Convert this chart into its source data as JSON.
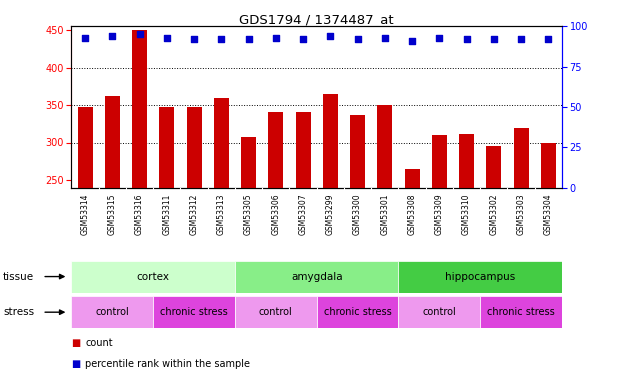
{
  "title": "GDS1794 / 1374487_at",
  "samples": [
    "GSM53314",
    "GSM53315",
    "GSM53316",
    "GSM53311",
    "GSM53312",
    "GSM53313",
    "GSM53305",
    "GSM53306",
    "GSM53307",
    "GSM53299",
    "GSM53300",
    "GSM53301",
    "GSM53308",
    "GSM53309",
    "GSM53310",
    "GSM53302",
    "GSM53303",
    "GSM53304"
  ],
  "counts": [
    347,
    362,
    450,
    348,
    347,
    360,
    308,
    341,
    341,
    365,
    337,
    350,
    265,
    310,
    311,
    296,
    319,
    299
  ],
  "percentiles": [
    93,
    94,
    95,
    93,
    92,
    92,
    92,
    93,
    92,
    94,
    92,
    93,
    91,
    93,
    92,
    92,
    92,
    92
  ],
  "bar_color": "#cc0000",
  "dot_color": "#0000cc",
  "ylim_left": [
    240,
    455
  ],
  "ylim_right": [
    0,
    100
  ],
  "yticks_left": [
    250,
    300,
    350,
    400,
    450
  ],
  "yticks_right": [
    0,
    25,
    50,
    75,
    100
  ],
  "grid_values": [
    300,
    350,
    400
  ],
  "tissue_groups": [
    {
      "label": "cortex",
      "start": 0,
      "end": 6,
      "color": "#ccffcc"
    },
    {
      "label": "amygdala",
      "start": 6,
      "end": 12,
      "color": "#88ee88"
    },
    {
      "label": "hippocampus",
      "start": 12,
      "end": 18,
      "color": "#44cc44"
    }
  ],
  "stress_groups": [
    {
      "label": "control",
      "start": 0,
      "end": 3,
      "color": "#ee99ee"
    },
    {
      "label": "chronic stress",
      "start": 3,
      "end": 6,
      "color": "#dd44dd"
    },
    {
      "label": "control",
      "start": 6,
      "end": 9,
      "color": "#ee99ee"
    },
    {
      "label": "chronic stress",
      "start": 9,
      "end": 12,
      "color": "#dd44dd"
    },
    {
      "label": "control",
      "start": 12,
      "end": 15,
      "color": "#ee99ee"
    },
    {
      "label": "chronic stress",
      "start": 15,
      "end": 18,
      "color": "#dd44dd"
    }
  ],
  "legend_count_color": "#cc0000",
  "legend_pct_color": "#0000cc",
  "background_color": "#ffffff",
  "xtick_bg": "#d8d8d8",
  "chart_bg": "#ffffff"
}
